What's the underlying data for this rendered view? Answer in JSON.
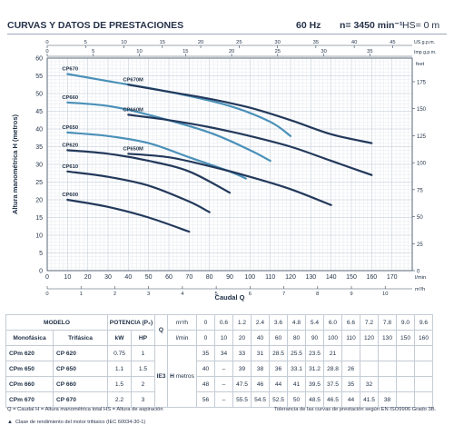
{
  "header": {
    "title": "CURVAS Y DATOS DE PRESTACIONES",
    "frequency": "60 Hz",
    "speed": "n= 3450 min⁻¹",
    "hs": "HS= 0 m"
  },
  "chart_data": {
    "type": "line",
    "title": "",
    "xlabel": "Caudal Q",
    "ylabel": "Altura manométrica H (metros)",
    "xlim": [
      0,
      180
    ],
    "ylim": [
      0,
      60
    ],
    "grid": true,
    "x_ticks": [
      "0",
      "10",
      "20",
      "30",
      "40",
      "50",
      "60",
      "70",
      "80",
      "90",
      "100",
      "110",
      "120",
      "130",
      "140",
      "150",
      "160",
      "170"
    ],
    "x_unit": "l/min",
    "y_ticks": [
      "0",
      "5",
      "10",
      "15",
      "20",
      "25",
      "30",
      "35",
      "40",
      "45",
      "50",
      "55",
      "60"
    ],
    "top_axis_1": {
      "unit": "US g.p.m.",
      "ticks": [
        "0",
        "5",
        "10",
        "15",
        "20",
        "25",
        "30",
        "35",
        "40",
        "45"
      ],
      "lpm_per_unit": 3.785
    },
    "top_axis_2": {
      "unit": "Imp g.p.m.",
      "ticks": [
        "0",
        "5",
        "10",
        "15",
        "20",
        "25",
        "30",
        "35"
      ],
      "lpm_per_unit": 4.546
    },
    "bottom_axis_2": {
      "unit": "m³/h",
      "ticks": [
        "0",
        "1",
        "2",
        "3",
        "4",
        "5",
        "6",
        "7",
        "8",
        "9",
        "10"
      ],
      "lpm_per_unit": 16.667
    },
    "right_axis": {
      "unit": "feet",
      "ticks": [
        "0",
        "25",
        "50",
        "75",
        "100",
        "125",
        "150",
        "175"
      ],
      "m_per_unit": 0.3048
    },
    "series": [
      {
        "name": "CP670",
        "color": "#4a90b8",
        "x": [
          10,
          30,
          60,
          90,
          110,
          120
        ],
        "y": [
          55.5,
          53.5,
          50.5,
          46.5,
          42,
          38
        ]
      },
      {
        "name": "CP670M",
        "color": "#23395b",
        "x": [
          40,
          60,
          80,
          100,
          120,
          140,
          160
        ],
        "y": [
          52.5,
          50.5,
          48.5,
          46,
          42.5,
          38.5,
          36
        ]
      },
      {
        "name": "CP660",
        "color": "#4a90b8",
        "x": [
          10,
          30,
          50,
          80,
          100,
          110
        ],
        "y": [
          47.5,
          46.5,
          44,
          39,
          34,
          31
        ]
      },
      {
        "name": "CP660M",
        "color": "#23395b",
        "x": [
          40,
          60,
          80,
          100,
          120,
          140,
          160
        ],
        "y": [
          44,
          42.5,
          40.5,
          38,
          35,
          31,
          27
        ]
      },
      {
        "name": "CP650",
        "color": "#4a90b8",
        "x": [
          10,
          30,
          50,
          70,
          90,
          98
        ],
        "y": [
          39,
          38,
          36,
          32,
          28,
          26
        ]
      },
      {
        "name": "CP650M",
        "color": "#23395b",
        "x": [
          40,
          60,
          80,
          100,
          120,
          140
        ],
        "y": [
          33,
          32,
          29.5,
          26.5,
          23,
          18.5
        ]
      },
      {
        "name": "CP620",
        "color": "#23395b",
        "x": [
          10,
          30,
          50,
          70,
          90
        ],
        "y": [
          34,
          33,
          31,
          28,
          22
        ]
      },
      {
        "name": "CP610",
        "color": "#23395b",
        "x": [
          10,
          30,
          50,
          70,
          80
        ],
        "y": [
          28,
          26.5,
          24,
          19.5,
          16.5
        ]
      },
      {
        "name": "CP600",
        "color": "#23395b",
        "x": [
          10,
          30,
          50,
          70
        ],
        "y": [
          20,
          18,
          15,
          11
        ]
      }
    ]
  },
  "table": {
    "headers": {
      "modelo": "MODELO",
      "monofasica": "Monofásica",
      "trifasica": "Trifásica",
      "potencia": "POTENCIA (P₂)",
      "kw": "kW",
      "hp": "HP",
      "q": "Q",
      "m3h": "m³/h",
      "lmin": "l/min",
      "ie3": "IE3",
      "h": "H",
      "metros": "metros"
    },
    "q_m3h": [
      "0",
      "0.6",
      "1.2",
      "2.4",
      "3.6",
      "4.8",
      "5.4",
      "6.0",
      "6.6",
      "7.2",
      "7.8",
      "9.0",
      "9.6"
    ],
    "q_lmin": [
      "0",
      "10",
      "20",
      "40",
      "60",
      "80",
      "90",
      "100",
      "110",
      "120",
      "130",
      "150",
      "160"
    ],
    "rows": [
      {
        "mono": "CPm 620",
        "tri": "CP 620",
        "kw": "0.75",
        "hp": "1",
        "h": [
          "35",
          "34",
          "33",
          "31",
          "28.5",
          "25.5",
          "23.5",
          "21",
          "",
          "",
          "",
          "",
          ""
        ]
      },
      {
        "mono": "CPm 650",
        "tri": "CP 650",
        "kw": "1.1",
        "hp": "1.5",
        "h": [
          "40",
          "–",
          "39",
          "38",
          "36",
          "33.1",
          "31.2",
          "28.8",
          "26",
          "",
          "",
          "",
          ""
        ]
      },
      {
        "mono": "CPm 660",
        "tri": "CP 660",
        "kw": "1.5",
        "hp": "2",
        "h": [
          "48",
          "–",
          "47.5",
          "46",
          "44",
          "41",
          "39.5",
          "37.5",
          "35",
          "32",
          "",
          "",
          ""
        ]
      },
      {
        "mono": "CPm 670",
        "tri": "CP 670",
        "kw": "2.2",
        "hp": "3",
        "h": [
          "56",
          "–",
          "55.5",
          "54.5",
          "52.5",
          "50",
          "48.5",
          "46.5",
          "44",
          "41.5",
          "38",
          "",
          ""
        ]
      }
    ]
  },
  "footer": {
    "legend": "Q = Caudal  H = Altura manométrica total  HS = Altura de aspiración",
    "tolerance": "Tolerancia de las curvas de prestación según EN ISO9906 Grado 3B.",
    "efficiency": "Clase de rendimiento del motor trifásico (IEC 60034-30-1)"
  }
}
